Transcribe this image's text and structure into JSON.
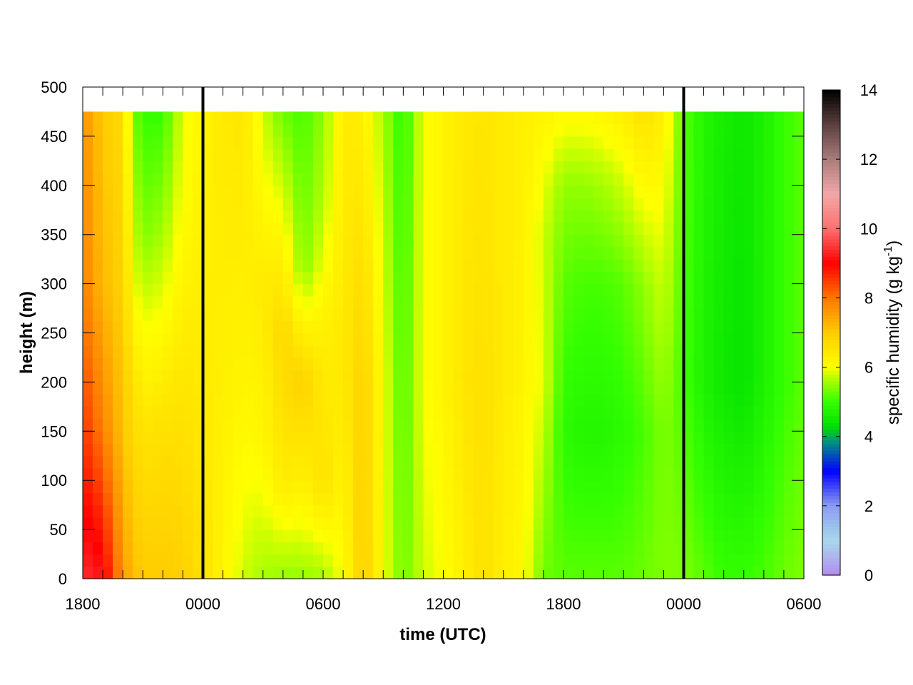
{
  "chart_data": {
    "type": "heatmap",
    "title": "",
    "xlabel": "time (UTC)",
    "ylabel": "height (m)",
    "colorbar_label": "specific humidity (g kg",
    "colorbar_label_sup": "-1",
    "colorbar_label_end": ")",
    "x_ticks": [
      "1800",
      "0000",
      "0600",
      "1200",
      "1800",
      "0000",
      "0600"
    ],
    "x_range_hours": [
      0,
      36
    ],
    "x_minor_tick_hours": 1,
    "y_range": [
      0,
      500
    ],
    "y_ticks": [
      0,
      50,
      100,
      150,
      200,
      250,
      300,
      350,
      400,
      450,
      500
    ],
    "data_top_height": 475,
    "midnight_lines_hours": [
      6,
      30
    ],
    "colorbar_range": [
      0,
      14
    ],
    "colorbar_ticks": [
      0,
      2,
      4,
      6,
      8,
      10,
      12,
      14
    ],
    "colorscale": [
      {
        "v": 0,
        "c": "#b28cf0"
      },
      {
        "v": 1,
        "c": "#a8d8ec"
      },
      {
        "v": 2,
        "c": "#8c9cf2"
      },
      {
        "v": 3,
        "c": "#0000ff"
      },
      {
        "v": 3.8,
        "c": "#008a8a"
      },
      {
        "v": 4.3,
        "c": "#00e000"
      },
      {
        "v": 5,
        "c": "#33ff00"
      },
      {
        "v": 5.8,
        "c": "#ccff00"
      },
      {
        "v": 6,
        "c": "#ffff00"
      },
      {
        "v": 7,
        "c": "#ffcc00"
      },
      {
        "v": 8,
        "c": "#ff7700"
      },
      {
        "v": 9,
        "c": "#ff0000"
      },
      {
        "v": 10,
        "c": "#ff6f6f"
      },
      {
        "v": 11,
        "c": "#f2a8a8"
      },
      {
        "v": 12,
        "c": "#ab7c7c"
      },
      {
        "v": 13,
        "c": "#5c4040"
      },
      {
        "v": 14,
        "c": "#000000"
      }
    ],
    "profiles": [
      {
        "t": 0,
        "q": [
          {
            "z": 0,
            "v": 9.4
          },
          {
            "z": 150,
            "v": 8.6
          },
          {
            "z": 300,
            "v": 7.9
          },
          {
            "z": 475,
            "v": 7.7
          }
        ]
      },
      {
        "t": 1,
        "q": [
          {
            "z": 0,
            "v": 9.2
          },
          {
            "z": 150,
            "v": 7.9
          },
          {
            "z": 300,
            "v": 7.2
          },
          {
            "z": 475,
            "v": 7.0
          }
        ]
      },
      {
        "t": 2,
        "q": [
          {
            "z": 0,
            "v": 7.6
          },
          {
            "z": 150,
            "v": 7.1
          },
          {
            "z": 300,
            "v": 6.9
          },
          {
            "z": 475,
            "v": 6.7
          }
        ]
      },
      {
        "t": 2.5,
        "q": [
          {
            "z": 0,
            "v": 7.2
          },
          {
            "z": 200,
            "v": 6.6
          },
          {
            "z": 300,
            "v": 6.0
          },
          {
            "z": 475,
            "v": 5.4
          }
        ]
      },
      {
        "t": 3,
        "q": [
          {
            "z": 0,
            "v": 7.0
          },
          {
            "z": 150,
            "v": 6.5
          },
          {
            "z": 250,
            "v": 6.0
          },
          {
            "z": 350,
            "v": 5.4
          },
          {
            "z": 475,
            "v": 5.0
          }
        ]
      },
      {
        "t": 4,
        "q": [
          {
            "z": 0,
            "v": 7.0
          },
          {
            "z": 150,
            "v": 6.6
          },
          {
            "z": 250,
            "v": 6.1
          },
          {
            "z": 350,
            "v": 5.6
          },
          {
            "z": 475,
            "v": 5.0
          }
        ]
      },
      {
        "t": 5,
        "q": [
          {
            "z": 0,
            "v": 6.9
          },
          {
            "z": 200,
            "v": 6.5
          },
          {
            "z": 350,
            "v": 6.1
          },
          {
            "z": 475,
            "v": 5.9
          }
        ]
      },
      {
        "t": 6,
        "q": [
          {
            "z": 0,
            "v": 6.6
          },
          {
            "z": 200,
            "v": 6.4
          },
          {
            "z": 475,
            "v": 6.2
          }
        ]
      },
      {
        "t": 7,
        "q": [
          {
            "z": 0,
            "v": 6.2
          },
          {
            "z": 200,
            "v": 6.3
          },
          {
            "z": 475,
            "v": 6.4
          }
        ]
      },
      {
        "t": 8,
        "q": [
          {
            "z": 0,
            "v": 5.8
          },
          {
            "z": 200,
            "v": 6.2
          },
          {
            "z": 475,
            "v": 6.5
          }
        ]
      },
      {
        "t": 9,
        "q": [
          {
            "z": 0,
            "v": 5.6
          },
          {
            "z": 150,
            "v": 6.2
          },
          {
            "z": 300,
            "v": 6.4
          },
          {
            "z": 475,
            "v": 5.8
          }
        ]
      },
      {
        "t": 10,
        "q": [
          {
            "z": 0,
            "v": 5.5
          },
          {
            "z": 100,
            "v": 6.4
          },
          {
            "z": 250,
            "v": 6.8
          },
          {
            "z": 400,
            "v": 5.8
          },
          {
            "z": 475,
            "v": 5.3
          }
        ]
      },
      {
        "t": 11,
        "q": [
          {
            "z": 0,
            "v": 5.5
          },
          {
            "z": 60,
            "v": 6.0
          },
          {
            "z": 200,
            "v": 6.9
          },
          {
            "z": 320,
            "v": 5.4
          },
          {
            "z": 475,
            "v": 5.1
          }
        ]
      },
      {
        "t": 12,
        "q": [
          {
            "z": 0,
            "v": 5.6
          },
          {
            "z": 100,
            "v": 6.6
          },
          {
            "z": 250,
            "v": 6.3
          },
          {
            "z": 380,
            "v": 5.7
          },
          {
            "z": 475,
            "v": 5.5
          }
        ]
      },
      {
        "t": 13,
        "q": [
          {
            "z": 0,
            "v": 6.0
          },
          {
            "z": 200,
            "v": 6.4
          },
          {
            "z": 475,
            "v": 6.4
          }
        ]
      },
      {
        "t": 14,
        "q": [
          {
            "z": 0,
            "v": 7.0
          },
          {
            "z": 200,
            "v": 6.9
          },
          {
            "z": 475,
            "v": 6.3
          }
        ]
      },
      {
        "t": 15,
        "q": [
          {
            "z": 0,
            "v": 6.0
          },
          {
            "z": 200,
            "v": 6.0
          },
          {
            "z": 475,
            "v": 5.6
          }
        ]
      },
      {
        "t": 16,
        "q": [
          {
            "z": 0,
            "v": 5.3
          },
          {
            "z": 200,
            "v": 5.1
          },
          {
            "z": 475,
            "v": 4.9
          }
        ]
      },
      {
        "t": 17,
        "q": [
          {
            "z": 0,
            "v": 5.8
          },
          {
            "z": 200,
            "v": 6.0
          },
          {
            "z": 475,
            "v": 6.0
          }
        ]
      },
      {
        "t": 18,
        "q": [
          {
            "z": 0,
            "v": 6.0
          },
          {
            "z": 200,
            "v": 6.2
          },
          {
            "z": 475,
            "v": 6.2
          }
        ]
      },
      {
        "t": 19,
        "q": [
          {
            "z": 0,
            "v": 6.3
          },
          {
            "z": 200,
            "v": 6.5
          },
          {
            "z": 475,
            "v": 6.4
          }
        ]
      },
      {
        "t": 20,
        "q": [
          {
            "z": 0,
            "v": 6.6
          },
          {
            "z": 200,
            "v": 6.6
          },
          {
            "z": 475,
            "v": 6.5
          }
        ]
      },
      {
        "t": 21,
        "q": [
          {
            "z": 0,
            "v": 6.3
          },
          {
            "z": 200,
            "v": 6.4
          },
          {
            "z": 475,
            "v": 6.4
          }
        ]
      },
      {
        "t": 22,
        "q": [
          {
            "z": 0,
            "v": 6.1
          },
          {
            "z": 200,
            "v": 6.2
          },
          {
            "z": 475,
            "v": 6.3
          }
        ]
      },
      {
        "t": 23,
        "q": [
          {
            "z": 0,
            "v": 5.3
          },
          {
            "z": 200,
            "v": 5.9
          },
          {
            "z": 350,
            "v": 5.8
          },
          {
            "z": 475,
            "v": 6.2
          }
        ]
      },
      {
        "t": 24,
        "q": [
          {
            "z": 0,
            "v": 5.2
          },
          {
            "z": 150,
            "v": 4.9
          },
          {
            "z": 300,
            "v": 5.2
          },
          {
            "z": 400,
            "v": 5.5
          },
          {
            "z": 475,
            "v": 6.1
          }
        ]
      },
      {
        "t": 25,
        "q": [
          {
            "z": 0,
            "v": 5.2
          },
          {
            "z": 150,
            "v": 4.8
          },
          {
            "z": 300,
            "v": 5.1
          },
          {
            "z": 400,
            "v": 5.5
          },
          {
            "z": 475,
            "v": 6.1
          }
        ]
      },
      {
        "t": 26,
        "q": [
          {
            "z": 0,
            "v": 5.2
          },
          {
            "z": 150,
            "v": 4.8
          },
          {
            "z": 300,
            "v": 5.1
          },
          {
            "z": 400,
            "v": 5.6
          },
          {
            "z": 475,
            "v": 6.2
          }
        ]
      },
      {
        "t": 27,
        "q": [
          {
            "z": 0,
            "v": 5.2
          },
          {
            "z": 150,
            "v": 4.9
          },
          {
            "z": 300,
            "v": 5.2
          },
          {
            "z": 400,
            "v": 5.8
          },
          {
            "z": 475,
            "v": 6.3
          }
        ]
      },
      {
        "t": 28,
        "q": [
          {
            "z": 0,
            "v": 5.3
          },
          {
            "z": 150,
            "v": 5.1
          },
          {
            "z": 300,
            "v": 5.5
          },
          {
            "z": 400,
            "v": 6.1
          },
          {
            "z": 475,
            "v": 6.6
          }
        ]
      },
      {
        "t": 29,
        "q": [
          {
            "z": 0,
            "v": 5.4
          },
          {
            "z": 150,
            "v": 5.4
          },
          {
            "z": 300,
            "v": 5.8
          },
          {
            "z": 475,
            "v": 6.3
          }
        ]
      },
      {
        "t": 30,
        "q": [
          {
            "z": 0,
            "v": 5.4
          },
          {
            "z": 200,
            "v": 5.1
          },
          {
            "z": 475,
            "v": 5.2
          }
        ]
      },
      {
        "t": 31,
        "q": [
          {
            "z": 0,
            "v": 5.2
          },
          {
            "z": 200,
            "v": 4.7
          },
          {
            "z": 475,
            "v": 4.8
          }
        ]
      },
      {
        "t": 32,
        "q": [
          {
            "z": 0,
            "v": 5.0
          },
          {
            "z": 200,
            "v": 4.5
          },
          {
            "z": 475,
            "v": 4.6
          }
        ]
      },
      {
        "t": 33,
        "q": [
          {
            "z": 0,
            "v": 5.0
          },
          {
            "z": 200,
            "v": 4.4
          },
          {
            "z": 475,
            "v": 4.5
          }
        ]
      },
      {
        "t": 34,
        "q": [
          {
            "z": 0,
            "v": 5.1
          },
          {
            "z": 200,
            "v": 4.7
          },
          {
            "z": 475,
            "v": 4.7
          }
        ]
      },
      {
        "t": 35,
        "q": [
          {
            "z": 0,
            "v": 5.3
          },
          {
            "z": 200,
            "v": 5.0
          },
          {
            "z": 475,
            "v": 5.0
          }
        ]
      },
      {
        "t": 36,
        "q": [
          {
            "z": 0,
            "v": 5.4
          },
          {
            "z": 200,
            "v": 5.2
          },
          {
            "z": 475,
            "v": 5.2
          }
        ]
      }
    ]
  }
}
